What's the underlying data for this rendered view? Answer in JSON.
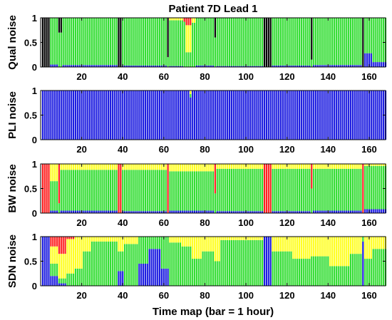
{
  "colors": {
    "black": "#000000",
    "green": "#33dd33",
    "yellow": "#ffff22",
    "red": "#ff2020",
    "blue": "#1d1de0"
  },
  "chart_data": [
    {
      "type": "stacked-bar",
      "title": "Patient 7D Lead 1",
      "ylabel": "Qual noise",
      "xlabel": "",
      "xlim": [
        0,
        168
      ],
      "ylim": [
        0,
        1
      ],
      "xticks": [
        "20",
        "40",
        "60",
        "80",
        "100",
        "120",
        "140",
        "160"
      ],
      "yticks": [
        "0",
        "0.5",
        "1"
      ],
      "series_order": [
        "blue",
        "green",
        "yellow",
        "red",
        "black"
      ],
      "segments": [
        {
          "range": [
            1,
            4
          ],
          "values": {
            "black": 1.0
          }
        },
        {
          "range": [
            5,
            8
          ],
          "values": {
            "blue": 0.05,
            "green": 0.95
          }
        },
        {
          "range": [
            9,
            10
          ],
          "values": {
            "black": 0.3,
            "green": 0.7
          }
        },
        {
          "range": [
            11,
            37
          ],
          "values": {
            "blue": 0.04,
            "green": 0.96
          }
        },
        {
          "range": [
            38,
            39
          ],
          "values": {
            "black": 1.0
          }
        },
        {
          "range": [
            40,
            61
          ],
          "values": {
            "blue": 0.03,
            "green": 0.97
          }
        },
        {
          "range": [
            62,
            62
          ],
          "values": {
            "black": 0.8,
            "green": 0.2
          }
        },
        {
          "range": [
            63,
            69
          ],
          "values": {
            "blue": 0.02,
            "green": 0.93,
            "yellow": 0.05
          }
        },
        {
          "range": [
            70,
            70
          ],
          "values": {
            "green": 0.92,
            "red": 0.08
          }
        },
        {
          "range": [
            71,
            73
          ],
          "values": {
            "green": 0.3,
            "yellow": 0.55,
            "red": 0.15
          }
        },
        {
          "range": [
            74,
            75
          ],
          "values": {
            "green": 0.9,
            "yellow": 0.1
          }
        },
        {
          "range": [
            76,
            84
          ],
          "values": {
            "blue": 0.03,
            "green": 0.97
          }
        },
        {
          "range": [
            85,
            85
          ],
          "values": {
            "black": 0.4,
            "green": 0.6
          }
        },
        {
          "range": [
            86,
            108
          ],
          "values": {
            "blue": 0.02,
            "green": 0.98
          }
        },
        {
          "range": [
            109,
            112
          ],
          "values": {
            "black": 1.0
          }
        },
        {
          "range": [
            113,
            131
          ],
          "values": {
            "blue": 0.03,
            "green": 0.97
          }
        },
        {
          "range": [
            132,
            132
          ],
          "values": {
            "black": 0.85,
            "green": 0.15
          }
        },
        {
          "range": [
            133,
            156
          ],
          "values": {
            "blue": 0.04,
            "green": 0.96
          }
        },
        {
          "range": [
            157,
            157
          ],
          "values": {
            "black": 1.0
          }
        },
        {
          "range": [
            158,
            161
          ],
          "values": {
            "blue": 0.28,
            "green": 0.72
          }
        },
        {
          "range": [
            162,
            168
          ],
          "values": {
            "blue": 0.1,
            "green": 0.9
          }
        }
      ]
    },
    {
      "type": "stacked-bar",
      "title": "",
      "ylabel": "PLI noise",
      "xlabel": "",
      "xlim": [
        0,
        168
      ],
      "ylim": [
        0,
        1
      ],
      "xticks": [
        "20",
        "40",
        "60",
        "80",
        "100",
        "120",
        "140",
        "160"
      ],
      "yticks": [
        "0",
        "0.5",
        "1"
      ],
      "series_order": [
        "blue",
        "green",
        "yellow",
        "red",
        "black"
      ],
      "segments": [
        {
          "range": [
            1,
            72
          ],
          "values": {
            "blue": 1.0
          }
        },
        {
          "range": [
            73,
            73
          ],
          "values": {
            "blue": 0.86,
            "green": 0.07,
            "yellow": 0.07
          }
        },
        {
          "range": [
            74,
            168
          ],
          "values": {
            "blue": 1.0
          }
        }
      ]
    },
    {
      "type": "stacked-bar",
      "title": "",
      "ylabel": "BW noise",
      "xlabel": "",
      "xlim": [
        0,
        168
      ],
      "ylim": [
        0,
        1
      ],
      "xticks": [
        "20",
        "40",
        "60",
        "80",
        "100",
        "120",
        "140",
        "160"
      ],
      "yticks": [
        "0",
        "0.5",
        "1"
      ],
      "series_order": [
        "blue",
        "green",
        "yellow",
        "red",
        "black"
      ],
      "segments": [
        {
          "range": [
            1,
            4
          ],
          "values": {
            "red": 1.0
          }
        },
        {
          "range": [
            5,
            8
          ],
          "values": {
            "blue": 0.05,
            "green": 0.6,
            "yellow": 0.35
          }
        },
        {
          "range": [
            9,
            9
          ],
          "values": {
            "green": 0.2,
            "red": 0.8
          }
        },
        {
          "range": [
            10,
            37
          ],
          "values": {
            "blue": 0.05,
            "green": 0.83,
            "yellow": 0.12
          }
        },
        {
          "range": [
            38,
            39
          ],
          "values": {
            "red": 1.0
          }
        },
        {
          "range": [
            40,
            61
          ],
          "values": {
            "blue": 0.04,
            "green": 0.84,
            "yellow": 0.12
          }
        },
        {
          "range": [
            62,
            62
          ],
          "values": {
            "red": 1.0
          }
        },
        {
          "range": [
            63,
            84
          ],
          "values": {
            "blue": 0.05,
            "green": 0.8,
            "yellow": 0.15
          }
        },
        {
          "range": [
            85,
            85
          ],
          "values": {
            "green": 0.4,
            "red": 0.6
          }
        },
        {
          "range": [
            86,
            108
          ],
          "values": {
            "blue": 0.04,
            "green": 0.86,
            "yellow": 0.1
          }
        },
        {
          "range": [
            109,
            112
          ],
          "values": {
            "red": 1.0
          }
        },
        {
          "range": [
            113,
            131
          ],
          "values": {
            "blue": 0.04,
            "green": 0.86,
            "yellow": 0.1
          }
        },
        {
          "range": [
            132,
            132
          ],
          "values": {
            "green": 0.5,
            "red": 0.5
          }
        },
        {
          "range": [
            133,
            156
          ],
          "values": {
            "blue": 0.05,
            "green": 0.85,
            "yellow": 0.1
          }
        },
        {
          "range": [
            157,
            157
          ],
          "values": {
            "red": 1.0
          }
        },
        {
          "range": [
            158,
            168
          ],
          "values": {
            "blue": 0.08,
            "green": 0.88,
            "yellow": 0.04
          }
        }
      ]
    },
    {
      "type": "stacked-bar",
      "title": "",
      "ylabel": "SDN noise",
      "xlabel": "Time map (bar = 1 hour)",
      "xlim": [
        0,
        168
      ],
      "ylim": [
        0,
        1
      ],
      "xticks": [
        "20",
        "40",
        "60",
        "80",
        "100",
        "120",
        "140",
        "160"
      ],
      "yticks": [
        "0",
        "0.5",
        "1"
      ],
      "series_order": [
        "blue",
        "green",
        "yellow",
        "red",
        "black"
      ],
      "segments": [
        {
          "range": [
            1,
            4
          ],
          "values": {
            "blue": 1.0
          }
        },
        {
          "range": [
            5,
            8
          ],
          "values": {
            "blue": 0.2,
            "green": 0.25,
            "yellow": 0.35,
            "red": 0.2
          }
        },
        {
          "range": [
            9,
            12
          ],
          "values": {
            "blue": 0.05,
            "green": 0.1,
            "yellow": 0.5,
            "red": 0.35
          }
        },
        {
          "range": [
            13,
            16
          ],
          "values": {
            "green": 0.25,
            "yellow": 0.7,
            "red": 0.05
          }
        },
        {
          "range": [
            17,
            20
          ],
          "values": {
            "green": 0.35,
            "yellow": 0.65
          }
        },
        {
          "range": [
            21,
            24
          ],
          "values": {
            "green": 0.7,
            "yellow": 0.3
          }
        },
        {
          "range": [
            25,
            37
          ],
          "values": {
            "green": 0.9,
            "yellow": 0.1
          }
        },
        {
          "range": [
            38,
            40
          ],
          "values": {
            "blue": 0.3,
            "green": 0.4,
            "yellow": 0.3
          }
        },
        {
          "range": [
            41,
            47
          ],
          "values": {
            "green": 0.85,
            "yellow": 0.15
          }
        },
        {
          "range": [
            48,
            52
          ],
          "values": {
            "blue": 0.45,
            "green": 0.55
          }
        },
        {
          "range": [
            53,
            58
          ],
          "values": {
            "blue": 0.75,
            "green": 0.25
          }
        },
        {
          "range": [
            59,
            62
          ],
          "values": {
            "blue": 0.35,
            "green": 0.65
          }
        },
        {
          "range": [
            63,
            68
          ],
          "values": {
            "green": 0.88,
            "yellow": 0.12
          }
        },
        {
          "range": [
            69,
            73
          ],
          "values": {
            "green": 0.8,
            "yellow": 0.2
          }
        },
        {
          "range": [
            74,
            78
          ],
          "values": {
            "green": 0.55,
            "yellow": 0.45
          }
        },
        {
          "range": [
            79,
            84
          ],
          "values": {
            "green": 0.7,
            "yellow": 0.3
          }
        },
        {
          "range": [
            85,
            87
          ],
          "values": {
            "green": 0.5,
            "yellow": 0.5
          }
        },
        {
          "range": [
            88,
            108
          ],
          "values": {
            "green": 0.93,
            "yellow": 0.07
          }
        },
        {
          "range": [
            109,
            112
          ],
          "values": {
            "blue": 1.0
          }
        },
        {
          "range": [
            113,
            122
          ],
          "values": {
            "green": 0.7,
            "yellow": 0.3
          }
        },
        {
          "range": [
            123,
            131
          ],
          "values": {
            "green": 0.55,
            "yellow": 0.45
          }
        },
        {
          "range": [
            132,
            140
          ],
          "values": {
            "green": 0.6,
            "yellow": 0.4
          }
        },
        {
          "range": [
            141,
            150
          ],
          "values": {
            "green": 0.4,
            "yellow": 0.6
          }
        },
        {
          "range": [
            151,
            156
          ],
          "values": {
            "green": 0.65,
            "yellow": 0.35
          }
        },
        {
          "range": [
            157,
            157
          ],
          "values": {
            "blue": 0.9,
            "green": 0.1
          }
        },
        {
          "range": [
            158,
            161
          ],
          "values": {
            "green": 0.55,
            "yellow": 0.45
          }
        },
        {
          "range": [
            162,
            168
          ],
          "values": {
            "green": 0.75,
            "yellow": 0.25
          }
        }
      ]
    }
  ]
}
